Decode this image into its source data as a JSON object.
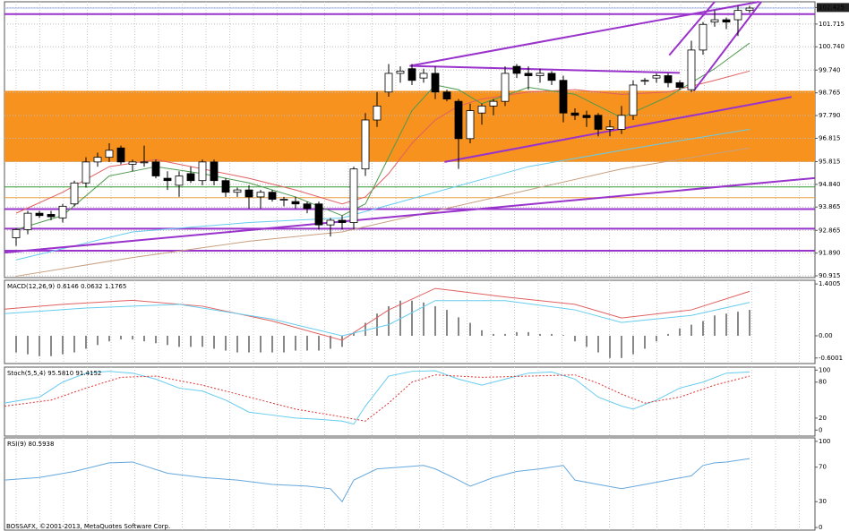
{
  "chart_data": [
    {
      "type": "candlestick",
      "grid": true,
      "ylim": [
        90.84,
        102.67
      ],
      "yticks": [
        102.425,
        101.715,
        {
          "value": 100.74,
          "label": "100.740"
        },
        {
          "value": 99.74,
          "label": "99.740"
        },
        98.765,
        {
          "value": 97.79,
          "label": "97.790"
        },
        96.815,
        95.815,
        {
          "value": 94.84,
          "label": "94.840"
        },
        93.865,
        92.865,
        {
          "value": 91.89,
          "label": "91.890"
        },
        90.915
      ],
      "up_color": "#ffffff",
      "down_color": "#000000",
      "open": [
        92.55,
        92.9,
        93.6,
        93.55,
        93.4,
        94.0,
        94.9,
        95.8,
        96.0,
        96.4,
        95.7,
        95.8,
        95.8,
        95.1,
        94.8,
        95.3,
        95.0,
        95.8,
        95.0,
        94.5,
        94.6,
        94.3,
        94.5,
        94.2,
        94.1,
        94.0,
        94.0,
        93.1,
        93.3,
        93.2,
        95.5,
        97.6,
        98.8,
        99.6,
        99.8,
        99.4,
        99.6,
        98.8,
        98.4,
        96.8,
        97.9,
        98.2,
        98.4,
        99.9,
        99.6,
        99.5,
        99.6,
        99.3,
        97.9,
        97.8,
        97.8,
        97.2,
        97.2,
        97.8,
        99.3,
        99.4,
        99.5,
        99.2,
        98.9,
        100.6,
        101.8,
        101.9,
        101.9,
        102.3
      ],
      "high": [
        92.95,
        93.7,
        93.7,
        93.7,
        94.0,
        95.0,
        96.0,
        96.2,
        96.6,
        96.5,
        95.9,
        96.5,
        95.9,
        95.4,
        95.4,
        95.6,
        95.9,
        95.9,
        95.1,
        94.7,
        94.8,
        94.6,
        94.6,
        94.3,
        94.3,
        94.1,
        94.1,
        93.4,
        93.5,
        95.6,
        97.9,
        98.8,
        100.0,
        99.9,
        100.0,
        99.8,
        99.9,
        98.9,
        98.5,
        98.3,
        98.3,
        98.5,
        99.9,
        100.0,
        99.9,
        99.8,
        99.7,
        99.5,
        98.1,
        98.0,
        97.9,
        97.6,
        98.2,
        99.3,
        99.4,
        99.6,
        99.6,
        99.3,
        101.0,
        101.8,
        102.3,
        102.0,
        102.5,
        102.5
      ],
      "low": [
        92.2,
        92.7,
        93.4,
        93.3,
        93.2,
        93.9,
        94.7,
        95.6,
        95.8,
        95.7,
        95.4,
        95.6,
        95.1,
        94.6,
        94.3,
        94.9,
        94.8,
        94.8,
        94.3,
        94.3,
        93.8,
        93.8,
        94.1,
        93.9,
        93.8,
        93.6,
        92.9,
        92.6,
        92.9,
        92.9,
        95.2,
        97.3,
        98.6,
        99.2,
        99.1,
        99.2,
        98.5,
        98.4,
        95.5,
        96.6,
        97.4,
        97.8,
        98.2,
        99.4,
        98.9,
        99.2,
        99.1,
        97.5,
        97.6,
        97.3,
        96.9,
        96.9,
        97.0,
        97.6,
        99.1,
        99.2,
        99.0,
        98.9,
        98.8,
        100.4,
        101.6,
        101.5,
        101.2,
        102.2
      ],
      "close": [
        92.9,
        93.6,
        93.5,
        93.45,
        93.9,
        94.9,
        95.8,
        96.0,
        96.3,
        95.8,
        95.8,
        95.8,
        95.2,
        95.0,
        95.2,
        95.0,
        95.8,
        95.0,
        94.5,
        94.6,
        94.3,
        94.5,
        94.2,
        94.2,
        94.0,
        93.8,
        93.1,
        93.3,
        93.2,
        95.5,
        97.6,
        98.2,
        99.6,
        99.7,
        99.3,
        99.6,
        98.8,
        98.5,
        96.8,
        98.0,
        98.2,
        98.4,
        99.6,
        99.6,
        99.5,
        99.6,
        99.3,
        97.9,
        97.8,
        97.7,
        97.2,
        97.3,
        97.8,
        99.1,
        99.3,
        99.5,
        99.2,
        99.0,
        100.6,
        101.7,
        101.9,
        101.8,
        102.3,
        102.4
      ],
      "zones": [
        {
          "from": 95.8,
          "to": 98.85,
          "color": "#f7921e"
        }
      ],
      "hlines": [
        {
          "value": 93.78,
          "color": "#9933cc"
        },
        {
          "value": 92.94,
          "color": "#9933cc"
        },
        {
          "value": 91.99,
          "color": "#9933cc"
        },
        {
          "value": 94.73,
          "color": "#339933"
        },
        {
          "value": 94.27,
          "color": "#e8a040"
        },
        {
          "value": 102.4,
          "color": "#aab8e8"
        },
        {
          "value": 102.14,
          "color": "#9933cc"
        }
      ],
      "trendlines": [
        {
          "x": [
            33.8,
            63.8
          ],
          "values": [
            99.92,
            102.67
          ],
          "color": "#9933cc"
        },
        {
          "x": [
            33.8,
            57
          ],
          "values": [
            99.92,
            99.62
          ],
          "color": "#9933cc"
        },
        {
          "x": [
            36.8,
            66.6
          ],
          "values": [
            95.8,
            98.59
          ],
          "color": "#9933cc"
        },
        {
          "x": [
            -1,
            68.6
          ],
          "values": [
            91.91,
            95.11
          ],
          "color": "#9933cc"
        },
        {
          "x": [
            56.1,
            60
          ],
          "values": [
            100.38,
            102.67
          ],
          "color": "#9933cc"
        },
        {
          "x": [
            58.2,
            64
          ],
          "values": [
            98.85,
            102.67
          ],
          "color": "#9933cc"
        }
      ],
      "series": [
        {
          "color": "#e06060",
          "x": [
            0,
            4,
            8,
            12,
            16,
            20,
            24,
            28,
            30,
            32,
            34,
            36,
            38,
            40,
            44,
            48,
            52,
            56,
            60,
            63
          ],
          "values": [
            93.6,
            94.5,
            95.6,
            95.9,
            95.5,
            95.1,
            94.6,
            94.0,
            94.3,
            95.3,
            96.6,
            97.6,
            98.2,
            98.5,
            98.8,
            98.9,
            98.7,
            98.8,
            99.3,
            99.7
          ]
        },
        {
          "color": "#4f9a4f",
          "x": [
            0,
            4,
            8,
            12,
            16,
            20,
            24,
            28,
            30,
            32,
            34,
            36,
            38,
            40,
            44,
            48,
            52,
            56,
            60,
            63
          ],
          "values": [
            92.9,
            93.5,
            95.2,
            95.6,
            95.3,
            94.9,
            94.3,
            93.5,
            94.0,
            96.0,
            98.0,
            99.1,
            98.9,
            98.3,
            99.0,
            98.7,
            97.7,
            98.6,
            99.8,
            100.9
          ]
        },
        {
          "color": "#66ccee",
          "x": [
            0,
            10,
            20,
            28,
            36,
            44,
            52,
            63
          ],
          "values": [
            91.6,
            92.8,
            93.2,
            93.4,
            94.5,
            95.6,
            96.3,
            97.2
          ]
        },
        {
          "color": "#c8a080",
          "x": [
            0,
            10,
            20,
            28,
            36,
            44,
            52,
            63
          ],
          "values": [
            90.9,
            91.7,
            92.4,
            92.8,
            93.7,
            94.6,
            95.5,
            96.4
          ]
        }
      ]
    },
    {
      "type": "macd",
      "title": "MACD(12,26,9) 0.6146 0.0632 1.1765",
      "ylim": [
        -0.75,
        1.5
      ],
      "yticks": [
        1.4005,
        {
          "value": 0,
          "label": "0.00"
        },
        -0.6001
      ],
      "histogram": [
        -0.45,
        -0.5,
        -0.55,
        -0.55,
        -0.5,
        -0.45,
        -0.35,
        -0.25,
        -0.15,
        -0.1,
        -0.1,
        -0.15,
        -0.2,
        -0.25,
        -0.3,
        -0.3,
        -0.3,
        -0.35,
        -0.4,
        -0.45,
        -0.45,
        -0.45,
        -0.45,
        -0.45,
        -0.4,
        -0.4,
        -0.4,
        -0.35,
        -0.3,
        0.1,
        0.35,
        0.6,
        0.8,
        0.95,
        0.95,
        0.9,
        0.8,
        0.7,
        0.5,
        0.35,
        0.15,
        0.05,
        0.05,
        0.1,
        0.1,
        0.05,
        0.05,
        0.02,
        -0.15,
        -0.3,
        -0.45,
        -0.6,
        -0.6,
        -0.5,
        -0.35,
        -0.15,
        0.05,
        0.2,
        0.3,
        0.4,
        0.55,
        0.6,
        0.65,
        0.7
      ],
      "histogram_color": "#888888",
      "series": [
        {
          "color": "#e06060",
          "x": [
            -1,
            4,
            10,
            16,
            22,
            28,
            32,
            36,
            42,
            48,
            52,
            58,
            63
          ],
          "values": [
            0.72,
            0.85,
            0.96,
            0.8,
            0.4,
            -0.12,
            0.7,
            1.28,
            1.05,
            0.85,
            0.48,
            0.7,
            1.2
          ]
        },
        {
          "color": "#66ccee",
          "x": [
            -1,
            6,
            14,
            22,
            28,
            32,
            36,
            42,
            48,
            52,
            58,
            63
          ],
          "values": [
            0.6,
            0.75,
            0.85,
            0.45,
            0.0,
            0.3,
            0.95,
            0.95,
            0.7,
            0.36,
            0.55,
            0.9
          ]
        }
      ]
    },
    {
      "type": "stochastic",
      "title": "Stoch(5,5,4) 95.5810 91.4152",
      "ylim": [
        -10,
        105
      ],
      "yticks": [
        100,
        80,
        20,
        0
      ],
      "series": [
        {
          "color": "#66ccee",
          "x": [
            -1,
            2,
            4,
            6,
            8,
            10,
            12,
            14,
            16,
            18,
            20,
            22,
            24,
            26,
            28,
            29,
            30,
            32,
            34,
            36,
            38,
            40,
            42,
            44,
            46,
            48,
            50,
            52,
            53,
            55,
            57,
            59,
            61,
            63
          ],
          "values": [
            45,
            55,
            80,
            95,
            98,
            95,
            85,
            70,
            65,
            50,
            30,
            25,
            20,
            18,
            15,
            10,
            40,
            90,
            98,
            99,
            85,
            75,
            85,
            95,
            97,
            85,
            55,
            40,
            35,
            50,
            70,
            80,
            95,
            97
          ]
        },
        {
          "color": "#dd3333",
          "dash": true,
          "x": [
            -1,
            3,
            6,
            9,
            12,
            16,
            20,
            24,
            28,
            30,
            32,
            34,
            36,
            40,
            44,
            48,
            50,
            52,
            54,
            57,
            60,
            63
          ],
          "values": [
            40,
            50,
            70,
            88,
            90,
            75,
            55,
            35,
            22,
            15,
            45,
            80,
            92,
            88,
            90,
            92,
            78,
            60,
            45,
            55,
            75,
            90
          ]
        }
      ]
    },
    {
      "type": "rsi",
      "title": "RSI(9) 80.5938",
      "footer": "BOSSAFX, ©2001-2013, MetaQuotes Software Corp.",
      "ylim": [
        -3,
        104
      ],
      "yticks": [
        100,
        70,
        30,
        0
      ],
      "series": [
        {
          "color": "#66a8dd",
          "x": [
            -1,
            2,
            5,
            8,
            10,
            13,
            16,
            19,
            22,
            25,
            27,
            28,
            29,
            31,
            33,
            35,
            36,
            38,
            39,
            41,
            43,
            45,
            47,
            48,
            50,
            52,
            54,
            56,
            58,
            59,
            60,
            61,
            63
          ],
          "values": [
            55,
            58,
            65,
            75,
            76,
            63,
            58,
            55,
            50,
            48,
            45,
            30,
            55,
            68,
            70,
            72,
            68,
            55,
            48,
            58,
            65,
            68,
            72,
            55,
            50,
            45,
            50,
            55,
            60,
            72,
            75,
            76,
            80
          ]
        }
      ]
    }
  ]
}
